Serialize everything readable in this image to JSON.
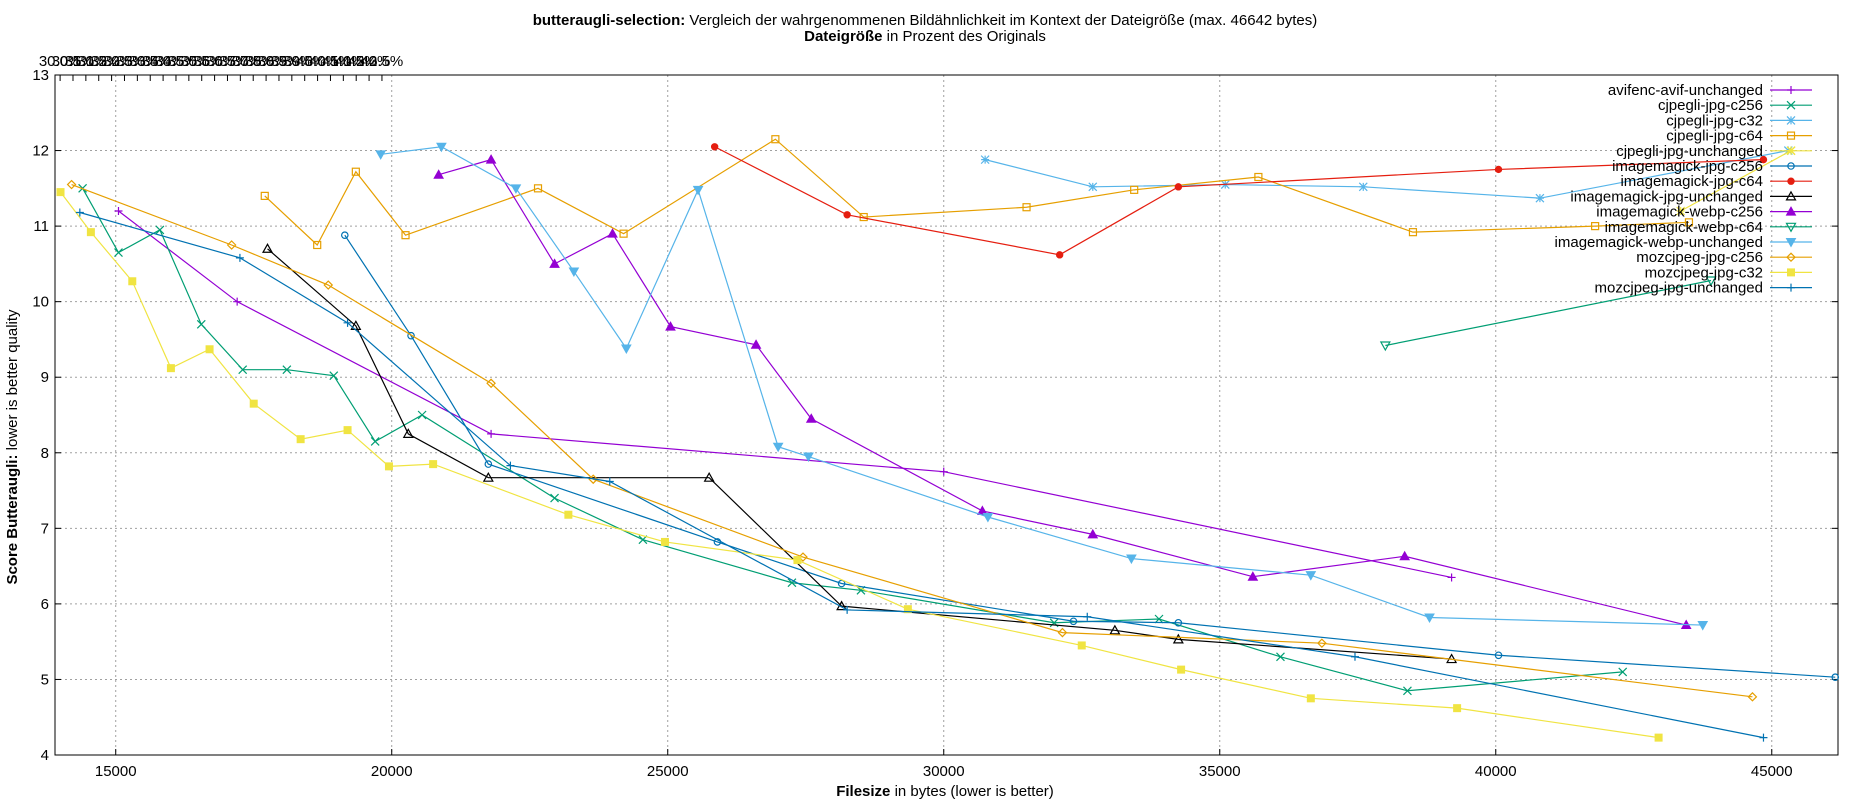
{
  "chart_data": {
    "type": "line",
    "title": {
      "bold": "butteraugli-selection:",
      "rest": " Vergleich der wahrgenommenen Bildähnlichkeit im Kontext der Dateigröße (max. 46642 bytes)"
    },
    "top_axis_title": {
      "bold": "Dateigröße",
      "rest": " in Prozent des Originals"
    },
    "xlabel": {
      "bold": "Filesize",
      "rest": " in bytes (lower is better)"
    },
    "ylabel": {
      "bold": "Score Butteraugli:",
      "rest": " lower is better quality"
    },
    "xlim": [
      13900,
      46200
    ],
    "ylim": [
      4,
      13
    ],
    "x_ticks": [
      "15000",
      "20000",
      "25000",
      "30000",
      "35000",
      "40000",
      "45000"
    ],
    "y_ticks": [
      "4",
      "5",
      "6",
      "7",
      "8",
      "9",
      "10",
      "11",
      "12",
      "13"
    ],
    "top_ticks": [
      "13.0%",
      "13.5%",
      "14.0%",
      "14.5%",
      "15.0%",
      "15.5%",
      "16.0%",
      "16.5%",
      "17.0%",
      "17.5%",
      "18.0%",
      "18.5%",
      "19.0%",
      "19.5%",
      "20.0%",
      "20.5%",
      "21.0%",
      "21.5%",
      "22.0%",
      "22.5%",
      "23.0%",
      "23.5%",
      "24.0%",
      "24.5%",
      "25.0%",
      "25.5%",
      "26.0%",
      "26.5%",
      "27.0%",
      "27.5%",
      "28.0%",
      "28.5%",
      "29.0%",
      "29.5%",
      "30.0%",
      "30.5%",
      "31.0%",
      "31.5%",
      "32.0%",
      "32.5%",
      "33.0%",
      "33.5%",
      "34.0%",
      "34.5%",
      "35.0%",
      "35.5%",
      "36.0%",
      "36.5%",
      "37.0%",
      "37.5%",
      "38.0%",
      "38.5%",
      "39.0%",
      "39.5%",
      "40.0%",
      "40.5%",
      "41.0%",
      "41.5%",
      "42.0%",
      "42.5%"
    ],
    "top_axis_max_bytes": 46642,
    "grid": true,
    "legend_position": "top-right",
    "series": [
      {
        "name": "avifenc-avif-unchanged",
        "color": "#9400d3",
        "marker": "plus",
        "points": [
          [
            15050,
            11.2
          ],
          [
            17200,
            10.0
          ],
          [
            21800,
            8.25
          ],
          [
            30000,
            7.75
          ],
          [
            39200,
            6.35
          ]
        ]
      },
      {
        "name": "cjpegli-jpg-c256",
        "color": "#009e73",
        "marker": "x",
        "points": [
          [
            14400,
            11.5
          ],
          [
            15050,
            10.65
          ],
          [
            15800,
            10.95
          ],
          [
            16550,
            9.7
          ],
          [
            17300,
            9.1
          ],
          [
            18100,
            9.1
          ],
          [
            18950,
            9.02
          ],
          [
            19700,
            8.15
          ],
          [
            20550,
            8.5
          ],
          [
            22950,
            7.4
          ],
          [
            24550,
            6.85
          ],
          [
            27250,
            6.28
          ],
          [
            28500,
            6.18
          ],
          [
            32000,
            5.75
          ],
          [
            33900,
            5.8
          ],
          [
            36100,
            5.3
          ],
          [
            38400,
            4.85
          ],
          [
            42300,
            5.1
          ]
        ]
      },
      {
        "name": "cjpegli-jpg-c32",
        "color": "#56b4e9",
        "marker": "star",
        "points": [
          [
            30750,
            11.88
          ],
          [
            32700,
            11.52
          ],
          [
            35100,
            11.55
          ],
          [
            37600,
            11.52
          ],
          [
            40800,
            11.37
          ],
          [
            45300,
            12.0
          ]
        ]
      },
      {
        "name": "cjpegli-jpg-c64",
        "color": "#e69f00",
        "marker": "square",
        "points": [
          [
            17700,
            11.4
          ],
          [
            18650,
            10.75
          ],
          [
            19350,
            11.72
          ],
          [
            20250,
            10.88
          ],
          [
            22650,
            11.5
          ],
          [
            24200,
            10.9
          ],
          [
            26950,
            12.15
          ],
          [
            28550,
            11.12
          ],
          [
            31500,
            11.25
          ],
          [
            33450,
            11.48
          ],
          [
            35700,
            11.65
          ],
          [
            38500,
            10.92
          ],
          [
            41800,
            11.0
          ],
          [
            43500,
            11.05
          ]
        ]
      },
      {
        "name": "cjpegli-jpg-unchanged",
        "color": "#f0e442",
        "marker": "star",
        "points": [
          [
            43350,
            11.2
          ],
          [
            45350,
            12.0
          ]
        ]
      },
      {
        "name": "imagemagick-jpg-c256",
        "color": "#0072b2",
        "marker": "circle",
        "points": [
          [
            19150,
            10.88
          ],
          [
            20350,
            9.55
          ],
          [
            21750,
            7.85
          ],
          [
            25900,
            6.82
          ],
          [
            28150,
            6.27
          ],
          [
            32350,
            5.77
          ],
          [
            34250,
            5.75
          ],
          [
            40050,
            5.32
          ],
          [
            46150,
            5.03
          ]
        ]
      },
      {
        "name": "imagemagick-jpg-c64",
        "color": "#e51e10",
        "marker": "fcircle",
        "points": [
          [
            25850,
            12.05
          ],
          [
            28250,
            11.15
          ],
          [
            32100,
            10.62
          ],
          [
            34250,
            11.52
          ],
          [
            40050,
            11.75
          ],
          [
            44850,
            11.88
          ]
        ]
      },
      {
        "name": "imagemagick-jpg-unchanged",
        "color": "#000000",
        "marker": "triangle",
        "points": [
          [
            17750,
            10.7
          ],
          [
            19350,
            9.68
          ],
          [
            20300,
            8.25
          ],
          [
            21750,
            7.67
          ],
          [
            25750,
            7.67
          ],
          [
            28150,
            5.97
          ],
          [
            33100,
            5.65
          ],
          [
            34250,
            5.53
          ],
          [
            39200,
            5.27
          ]
        ]
      },
      {
        "name": "imagemagick-webp-c256",
        "color": "#9400d3",
        "marker": "ftriangle",
        "points": [
          [
            20850,
            11.68
          ],
          [
            21800,
            11.88
          ],
          [
            22950,
            10.5
          ],
          [
            24000,
            10.9
          ],
          [
            25050,
            9.67
          ],
          [
            26600,
            9.43
          ],
          [
            27600,
            8.45
          ],
          [
            30700,
            7.23
          ],
          [
            32700,
            6.92
          ],
          [
            35600,
            6.36
          ],
          [
            38350,
            6.63
          ],
          [
            43450,
            5.72
          ]
        ]
      },
      {
        "name": "imagemagick-webp-c64",
        "color": "#009e73",
        "marker": "dtriangle",
        "points": [
          [
            38000,
            9.42
          ],
          [
            43900,
            10.28
          ]
        ]
      },
      {
        "name": "imagemagick-webp-unchanged",
        "color": "#56b4e9",
        "marker": "fdtriangle",
        "points": [
          [
            19800,
            11.95
          ],
          [
            20900,
            12.05
          ],
          [
            22250,
            11.5
          ],
          [
            23300,
            10.4
          ],
          [
            24250,
            9.38
          ],
          [
            25550,
            11.48
          ],
          [
            27000,
            8.08
          ],
          [
            27550,
            7.95
          ],
          [
            30800,
            7.15
          ],
          [
            33400,
            6.6
          ],
          [
            36650,
            6.38
          ],
          [
            38800,
            5.82
          ],
          [
            43750,
            5.72
          ]
        ]
      },
      {
        "name": "mozcjpeg-jpg-c256",
        "color": "#e69f00",
        "marker": "diamond",
        "points": [
          [
            14200,
            11.55
          ],
          [
            17100,
            10.75
          ],
          [
            18850,
            10.22
          ],
          [
            21800,
            8.92
          ],
          [
            23650,
            7.65
          ],
          [
            27450,
            6.62
          ],
          [
            32150,
            5.62
          ],
          [
            36850,
            5.48
          ],
          [
            44650,
            4.77
          ]
        ]
      },
      {
        "name": "mozcjpeg-jpg-c32",
        "color": "#f0e442",
        "marker": "fsquare",
        "points": [
          [
            14000,
            11.45
          ],
          [
            14550,
            10.92
          ],
          [
            15300,
            10.27
          ],
          [
            16000,
            9.12
          ],
          [
            16700,
            9.37
          ],
          [
            17500,
            8.65
          ],
          [
            18350,
            8.18
          ],
          [
            19200,
            8.3
          ],
          [
            19950,
            7.82
          ],
          [
            20750,
            7.85
          ],
          [
            23200,
            7.18
          ],
          [
            24950,
            6.82
          ],
          [
            27350,
            6.58
          ],
          [
            29350,
            5.93
          ],
          [
            32500,
            5.45
          ],
          [
            34300,
            5.13
          ],
          [
            36650,
            4.75
          ],
          [
            39300,
            4.62
          ],
          [
            42950,
            4.23
          ]
        ]
      },
      {
        "name": "mozcjpeg-jpg-unchanged",
        "color": "#0072b2",
        "marker": "plus",
        "points": [
          [
            14350,
            11.18
          ],
          [
            17250,
            10.58
          ],
          [
            19200,
            9.72
          ],
          [
            22150,
            7.83
          ],
          [
            23950,
            7.62
          ],
          [
            28250,
            5.92
          ],
          [
            32600,
            5.83
          ],
          [
            37450,
            5.3
          ],
          [
            44850,
            4.23
          ]
        ]
      }
    ]
  }
}
